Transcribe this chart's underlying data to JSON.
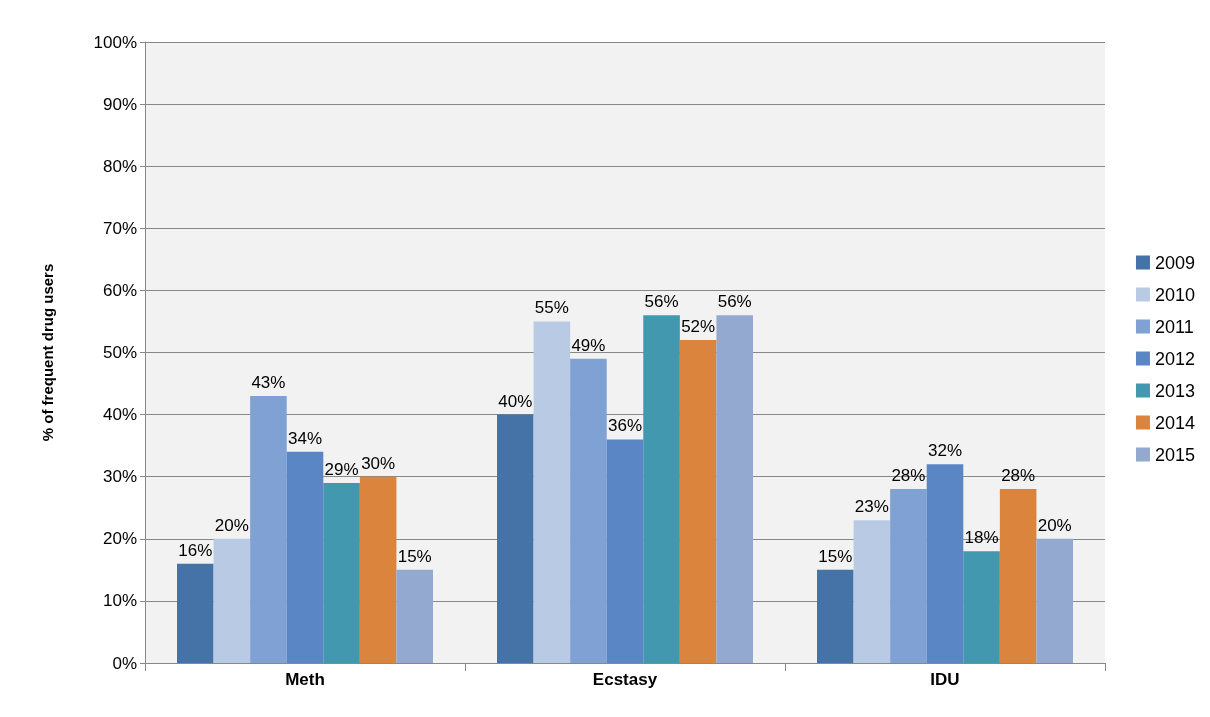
{
  "chart_data": {
    "type": "bar",
    "ylabel": "% of frequent drug users",
    "categories": [
      "Meth",
      "Ecstasy",
      "IDU"
    ],
    "series": [
      {
        "name": "2009",
        "color": "#4572a7",
        "values": [
          16,
          40,
          15
        ],
        "value_labels": [
          "16%",
          "40%",
          "15%"
        ]
      },
      {
        "name": "2010",
        "color": "#b9cbe4",
        "values": [
          20,
          55,
          23
        ],
        "value_labels": [
          "20%",
          "55%",
          "23%"
        ]
      },
      {
        "name": "2011",
        "color": "#7fa1d3",
        "values": [
          43,
          49,
          28
        ],
        "value_labels": [
          "43%",
          "49%",
          "28%"
        ]
      },
      {
        "name": "2012",
        "color": "#5b86c5",
        "values": [
          34,
          36,
          32
        ],
        "value_labels": [
          "34%",
          "36%",
          "32%"
        ]
      },
      {
        "name": "2013",
        "color": "#4198af",
        "values": [
          29,
          56,
          18
        ],
        "value_labels": [
          "29%",
          "56%",
          "18%"
        ]
      },
      {
        "name": "2014",
        "color": "#db843d",
        "values": [
          30,
          52,
          28
        ],
        "value_labels": [
          "30%",
          "52%",
          "28%"
        ]
      },
      {
        "name": "2015",
        "color": "#93a9cf",
        "values": [
          15,
          56,
          20
        ],
        "value_labels": [
          "15%",
          "56%",
          "20%"
        ]
      }
    ],
    "ylim": [
      0,
      100
    ],
    "yticks": [
      {
        "value": 0,
        "label": "0%"
      },
      {
        "value": 10,
        "label": "10%"
      },
      {
        "value": 20,
        "label": "20%"
      },
      {
        "value": 30,
        "label": "30%"
      },
      {
        "value": 40,
        "label": "40%"
      },
      {
        "value": 50,
        "label": "50%"
      },
      {
        "value": 60,
        "label": "60%"
      },
      {
        "value": 70,
        "label": "70%"
      },
      {
        "value": 80,
        "label": "80%"
      },
      {
        "value": 90,
        "label": "90%"
      },
      {
        "value": 100,
        "label": "100%"
      }
    ],
    "grid": "y",
    "legend": "right"
  }
}
